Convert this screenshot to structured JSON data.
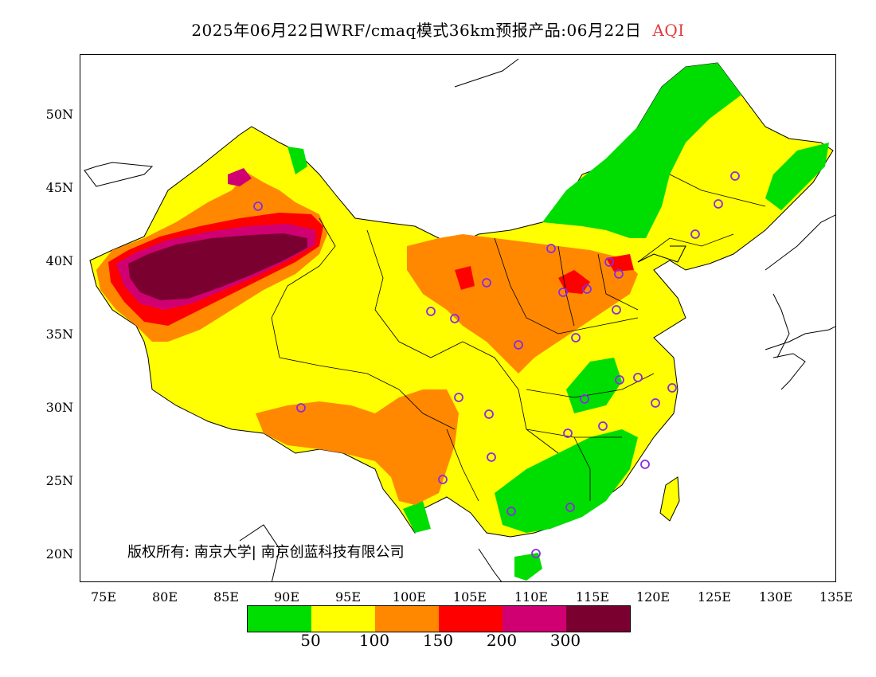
{
  "header": {
    "title": "2025年06月22日WRF/cmaq模式36km预报产品:06月22日",
    "variable": "AQI"
  },
  "axes": {
    "lat_labels": [
      "50N",
      "45N",
      "40N",
      "35N",
      "30N",
      "25N",
      "20N"
    ],
    "lon_labels": [
      "75E",
      "80E",
      "85E",
      "90E",
      "95E",
      "100E",
      "105E",
      "110E",
      "115E",
      "120E",
      "125E",
      "130E",
      "135E"
    ]
  },
  "map": {
    "lon_range": [
      73,
      135
    ],
    "lat_range": [
      18,
      54
    ],
    "region": "China",
    "copyright": "版权所有: 南京大学| 南京创蓝科技有限公司",
    "station_marker": "circle-outline",
    "station_color": "#8a2be2"
  },
  "legend": {
    "colors": [
      "#00dd00",
      "#ffff00",
      "#ff8800",
      "#ff0000",
      "#d00073",
      "#7a0030"
    ],
    "labels": [
      "50",
      "100",
      "150",
      "200",
      "300"
    ]
  }
}
